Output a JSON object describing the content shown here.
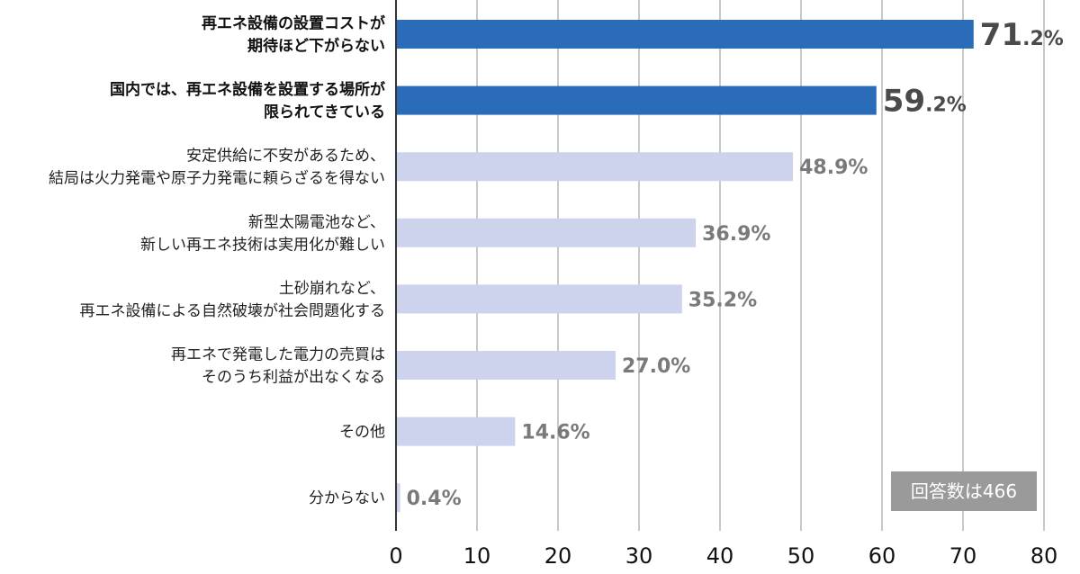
{
  "chart_data": {
    "type": "bar",
    "orientation": "horizontal",
    "categories": [
      [
        "再エネ設備の設置コストが",
        "期待ほど下がらない"
      ],
      [
        "国内では、再エネ設備を設置する場所が",
        "限られてきている"
      ],
      [
        "安定供給に不安があるため、",
        "結局は火力発電や原子力発電に頼らざるを得ない"
      ],
      [
        "新型太陽電池など、",
        "新しい再エネ技術は実用化が難しい"
      ],
      [
        "土砂崩れなど、",
        "再エネ設備による自然破壊が社会問題化する"
      ],
      [
        "再エネで発電した電力の売買は",
        "そのうち利益が出なくなる"
      ],
      [
        "その他"
      ],
      [
        "分からない"
      ]
    ],
    "values": [
      71.2,
      59.2,
      48.9,
      36.9,
      35.2,
      27.0,
      14.6,
      0.4
    ],
    "value_labels": [
      {
        "main": "71",
        "rest": ".2%"
      },
      {
        "main": "59",
        "rest": ".2%"
      },
      {
        "main": "48.9%",
        "rest": ""
      },
      {
        "main": "36.9%",
        "rest": ""
      },
      {
        "main": "35.2%",
        "rest": ""
      },
      {
        "main": "27.0%",
        "rest": ""
      },
      {
        "main": "14.6%",
        "rest": ""
      },
      {
        "main": "0.4%",
        "rest": ""
      }
    ],
    "highlight": [
      true,
      true,
      false,
      false,
      false,
      false,
      false,
      false
    ],
    "xlim": [
      0,
      80
    ],
    "xticks": [
      0,
      10,
      20,
      30,
      40,
      50,
      60,
      70,
      80
    ],
    "grid": true,
    "title": "",
    "xlabel": "",
    "ylabel": "",
    "colors": {
      "highlight": "#2b6cb8",
      "normal": "#cdd3ec",
      "grid": "#c8c8c8",
      "axis": "#333333"
    },
    "note": "回答数は466"
  }
}
